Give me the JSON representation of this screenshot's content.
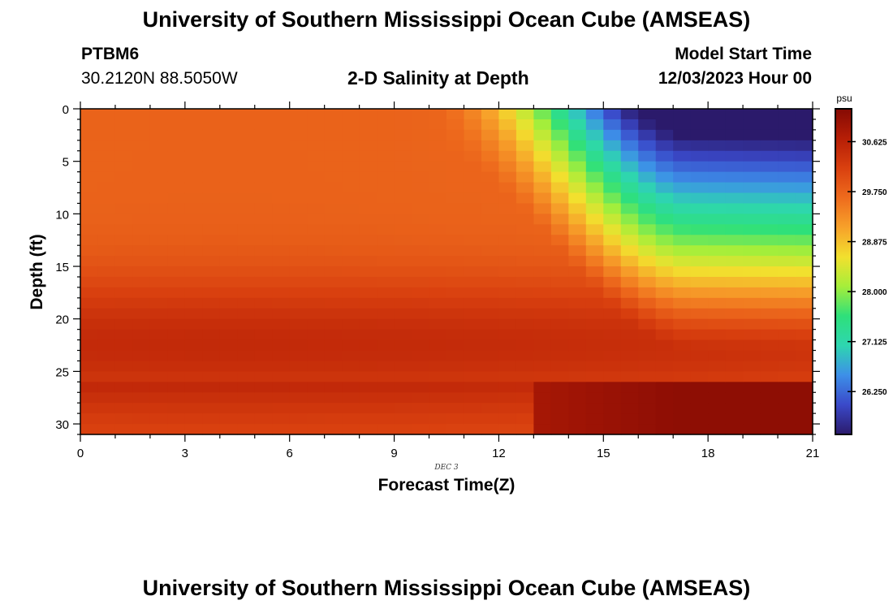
{
  "header": {
    "title": "University of Southern Mississippi Ocean Cube (AMSEAS)",
    "station": "PTBM6",
    "coords": "30.2120N  88.5050W",
    "subtitle": "2-D Salinity at Depth",
    "model_start_label": "Model Start Time",
    "model_start_value": "12/03/2023 Hour 00"
  },
  "footer": {
    "title": "University of Southern Mississippi Ocean Cube (AMSEAS)"
  },
  "chart_data": {
    "type": "heatmap",
    "title": "2-D Salinity at Depth",
    "xlabel": "Forecast Time(Z)",
    "ylabel": "Depth (ft)",
    "date_label": "DEC 3",
    "xlim": [
      0,
      21
    ],
    "ylim": [
      0,
      31
    ],
    "x_ticks": [
      0,
      3,
      6,
      9,
      12,
      15,
      18,
      21
    ],
    "x_tick_labels": [
      "0",
      "3",
      "6",
      "9",
      "12",
      "15",
      "18",
      "21"
    ],
    "y_ticks": [
      0,
      5,
      10,
      15,
      20,
      25,
      30
    ],
    "y_tick_labels": [
      "0",
      "5",
      "10",
      "15",
      "20",
      "25",
      "30"
    ],
    "colorbar": {
      "units": "psu",
      "min": 25.5,
      "max": 31.2,
      "ticks": [
        26.25,
        27.125,
        28.0,
        28.875,
        29.75,
        30.625
      ],
      "tick_labels": [
        "26.250",
        "27.125",
        "28.000",
        "28.875",
        "29.750",
        "30.625"
      ]
    },
    "grid": {
      "time_step_hours": 0.5,
      "depth_step_ft": 1
    },
    "description_of_field": "Salinity ~29.8-30.8 psu across most depths until ~hour 10; a fresher surface lens develops after hour 12 reaching ~25.8 psu near the surface at hours 17-20, while water below ~26 ft stays saltiest (~31 psu)."
  },
  "colors": {
    "ramp": [
      "#2b1a6b",
      "#3a49c9",
      "#3d8fe8",
      "#2ed6b0",
      "#2ee07a",
      "#a6ee3a",
      "#f2e02e",
      "#f7a12a",
      "#ee6b1d",
      "#d9400f",
      "#b61e06",
      "#850a04"
    ]
  }
}
